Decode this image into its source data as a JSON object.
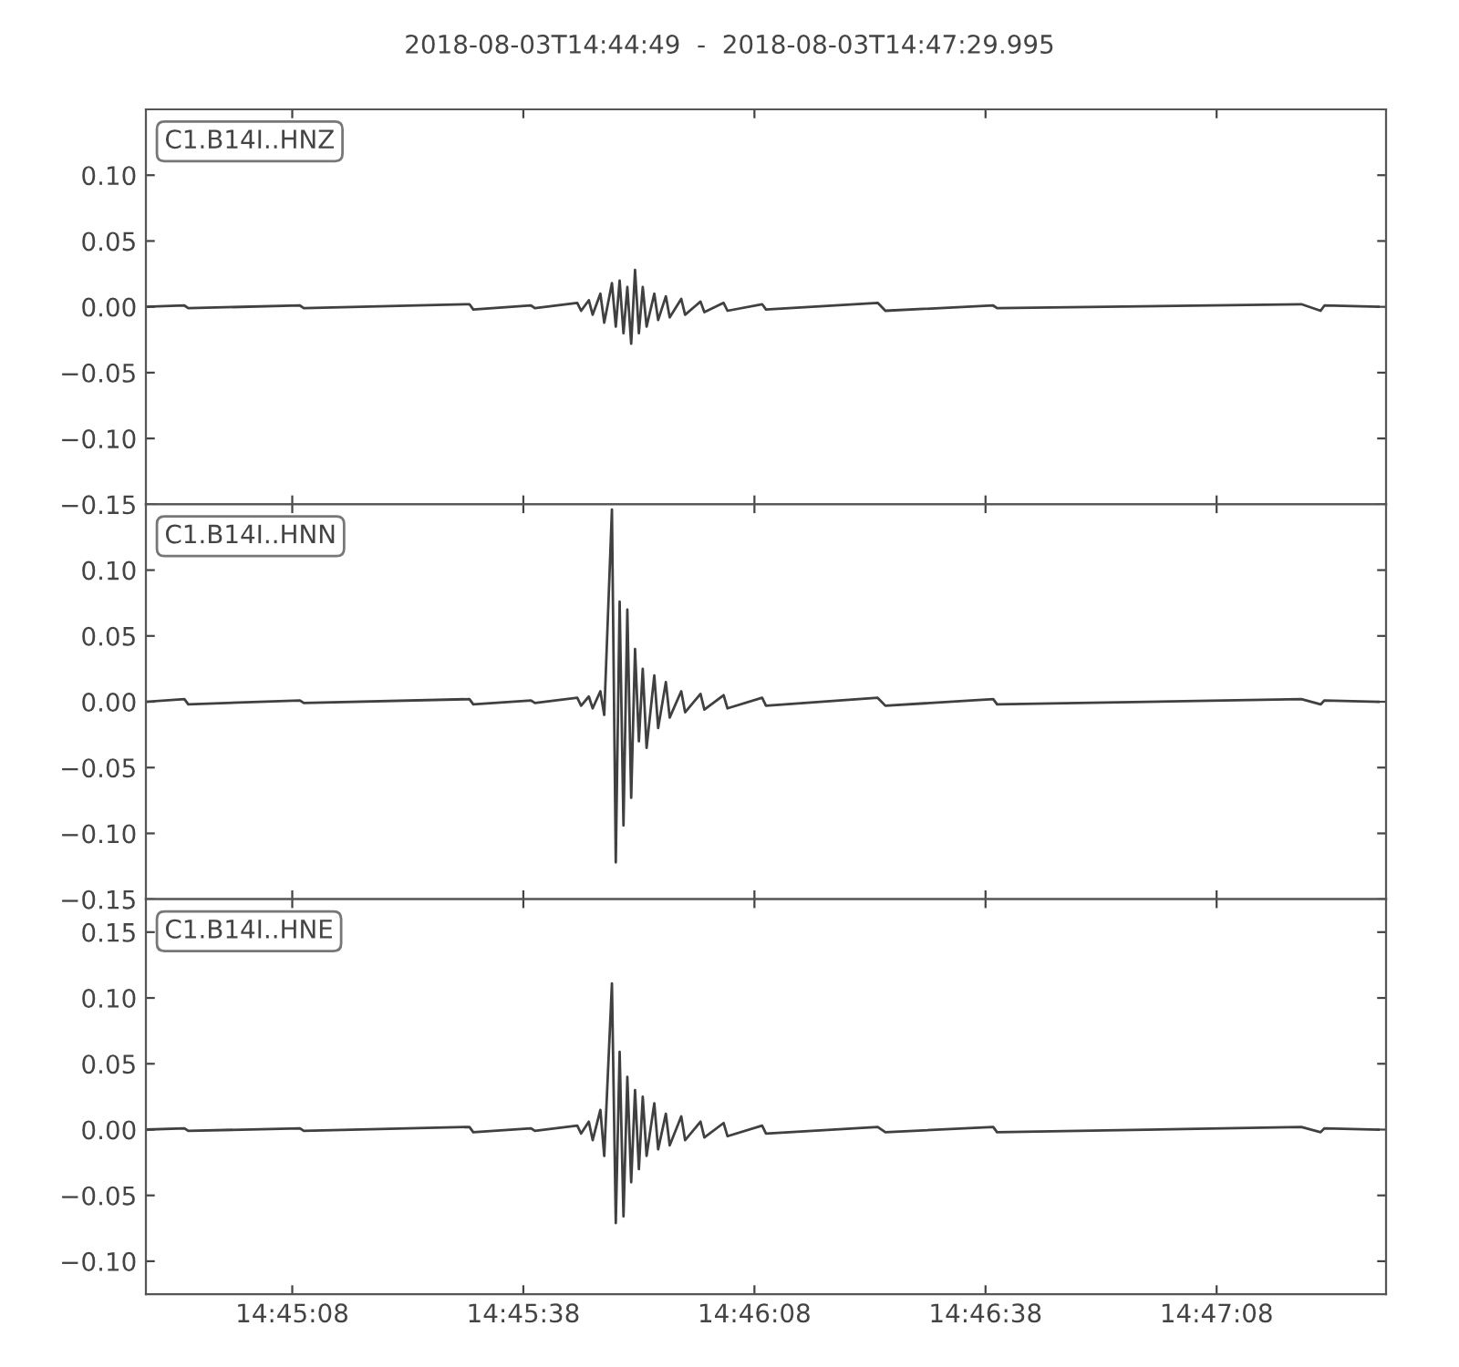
{
  "chart_data": [
    {
      "type": "line",
      "title": "2018-08-03T14:44:49  -  2018-08-03T14:47:29.995",
      "annotations": [
        "C1.B14I..HNZ"
      ],
      "x": [
        "2018-08-03T14:44:49",
        "2018-08-03T14:44:54",
        "2018-08-03T14:44:54.5",
        "2018-08-03T14:45:09",
        "2018-08-03T14:45:09.5",
        "2018-08-03T14:45:31",
        "2018-08-03T14:45:31.5",
        "2018-08-03T14:45:39",
        "2018-08-03T14:45:39.5",
        "2018-08-03T14:45:45",
        "2018-08-03T14:45:45.5",
        "2018-08-03T14:45:46.5",
        "2018-08-03T14:45:47",
        "2018-08-03T14:45:48",
        "2018-08-03T14:45:48.5",
        "2018-08-03T14:45:49.5",
        "2018-08-03T14:45:50",
        "2018-08-03T14:45:50.5",
        "2018-08-03T14:45:51",
        "2018-08-03T14:45:51.5",
        "2018-08-03T14:45:52",
        "2018-08-03T14:45:52.5",
        "2018-08-03T14:45:53",
        "2018-08-03T14:45:53.5",
        "2018-08-03T14:45:54",
        "2018-08-03T14:45:55",
        "2018-08-03T14:45:55.5",
        "2018-08-03T14:45:56.5",
        "2018-08-03T14:45:57",
        "2018-08-03T14:45:58.5",
        "2018-08-03T14:45:59",
        "2018-08-03T14:46:01",
        "2018-08-03T14:46:01.5",
        "2018-08-03T14:46:04",
        "2018-08-03T14:46:04.5",
        "2018-08-03T14:46:09",
        "2018-08-03T14:46:09.5",
        "2018-08-03T14:46:24",
        "2018-08-03T14:46:25",
        "2018-08-03T14:46:39",
        "2018-08-03T14:46:39.5",
        "2018-08-03T14:47:19",
        "2018-08-03T14:47:21.5",
        "2018-08-03T14:47:22",
        "2018-08-03T14:47:29"
      ],
      "series": [
        {
          "color": "#404040",
          "values": [
            0,
            0.001,
            -0.001,
            0.001,
            -0.001,
            0.002,
            -0.002,
            0.001,
            -0.001,
            0.003,
            -0.003,
            0.005,
            -0.006,
            0.01,
            -0.012,
            0.018,
            -0.015,
            0.02,
            -0.02,
            0.015,
            -0.028,
            0.028,
            -0.02,
            0.015,
            -0.015,
            0.01,
            -0.01,
            0.008,
            -0.008,
            0.006,
            -0.006,
            0.004,
            -0.004,
            0.003,
            -0.003,
            0.002,
            -0.002,
            0.003,
            -0.003,
            0.001,
            -0.001,
            0.002,
            -0.003,
            0.001,
            0
          ]
        }
      ],
      "xlim": [
        "2018-08-03T14:44:49",
        "2018-08-03T14:47:29.995"
      ],
      "ylim": [
        -0.15,
        0.15
      ],
      "xticks": [
        {
          "value": "2018-08-03T14:45:08",
          "label": null
        },
        {
          "value": "2018-08-03T14:45:38",
          "label": null
        },
        {
          "value": "2018-08-03T14:46:08",
          "label": null
        },
        {
          "value": "2018-08-03T14:46:38",
          "label": null
        },
        {
          "value": "2018-08-03T14:47:08",
          "label": null
        }
      ],
      "yticks": [
        {
          "value": -0.15,
          "label": "−0.15"
        },
        {
          "value": -0.1,
          "label": "−0.10"
        },
        {
          "value": -0.05,
          "label": "−0.05"
        },
        {
          "value": 0,
          "label": "0.00"
        },
        {
          "value": 0.05,
          "label": "0.05"
        },
        {
          "value": 0.1,
          "label": "0.10"
        }
      ],
      "tick_labels": "y",
      "grid": false,
      "legend": false
    },
    {
      "type": "line",
      "annotations": [
        "C1.B14I..HNN"
      ],
      "x": [
        "2018-08-03T14:44:49",
        "2018-08-03T14:44:54",
        "2018-08-03T14:44:54.5",
        "2018-08-03T14:45:09",
        "2018-08-03T14:45:09.5",
        "2018-08-03T14:45:31",
        "2018-08-03T14:45:31.5",
        "2018-08-03T14:45:39",
        "2018-08-03T14:45:39.5",
        "2018-08-03T14:45:45",
        "2018-08-03T14:45:45.5",
        "2018-08-03T14:45:46.5",
        "2018-08-03T14:45:47",
        "2018-08-03T14:45:48",
        "2018-08-03T14:45:48.5",
        "2018-08-03T14:45:49.5",
        "2018-08-03T14:45:50",
        "2018-08-03T14:45:50.5",
        "2018-08-03T14:45:51",
        "2018-08-03T14:45:51.5",
        "2018-08-03T14:45:52",
        "2018-08-03T14:45:52.5",
        "2018-08-03T14:45:53",
        "2018-08-03T14:45:53.5",
        "2018-08-03T14:45:54",
        "2018-08-03T14:45:55",
        "2018-08-03T14:45:55.5",
        "2018-08-03T14:45:56.5",
        "2018-08-03T14:45:57",
        "2018-08-03T14:45:58.5",
        "2018-08-03T14:45:59",
        "2018-08-03T14:46:01",
        "2018-08-03T14:46:01.5",
        "2018-08-03T14:46:04",
        "2018-08-03T14:46:04.5",
        "2018-08-03T14:46:09",
        "2018-08-03T14:46:09.5",
        "2018-08-03T14:46:24",
        "2018-08-03T14:46:25",
        "2018-08-03T14:46:39",
        "2018-08-03T14:46:39.5",
        "2018-08-03T14:47:19",
        "2018-08-03T14:47:21.5",
        "2018-08-03T14:47:22",
        "2018-08-03T14:47:29"
      ],
      "series": [
        {
          "color": "#404040",
          "values": [
            0,
            0.002,
            -0.002,
            0.001,
            -0.001,
            0.002,
            -0.002,
            0.001,
            -0.001,
            0.003,
            -0.003,
            0.004,
            -0.005,
            0.008,
            -0.01,
            0.146,
            -0.122,
            0.076,
            -0.094,
            0.07,
            -0.073,
            0.04,
            -0.03,
            0.025,
            -0.035,
            0.02,
            -0.02,
            0.015,
            -0.012,
            0.008,
            -0.008,
            0.006,
            -0.006,
            0.005,
            -0.005,
            0.003,
            -0.003,
            0.003,
            -0.003,
            0.002,
            -0.002,
            0.002,
            -0.002,
            0.001,
            0
          ]
        }
      ],
      "xlim": [
        "2018-08-03T14:44:49",
        "2018-08-03T14:47:29.995"
      ],
      "ylim": [
        -0.15,
        0.15
      ],
      "xticks": [
        {
          "value": "2018-08-03T14:45:08",
          "label": null
        },
        {
          "value": "2018-08-03T14:45:38",
          "label": null
        },
        {
          "value": "2018-08-03T14:46:08",
          "label": null
        },
        {
          "value": "2018-08-03T14:46:38",
          "label": null
        },
        {
          "value": "2018-08-03T14:47:08",
          "label": null
        }
      ],
      "yticks": [
        {
          "value": -0.15,
          "label": "−0.15"
        },
        {
          "value": -0.1,
          "label": "−0.10"
        },
        {
          "value": -0.05,
          "label": "−0.05"
        },
        {
          "value": 0,
          "label": "0.00"
        },
        {
          "value": 0.05,
          "label": "0.05"
        },
        {
          "value": 0.1,
          "label": "0.10"
        }
      ],
      "tick_labels": "y",
      "grid": false,
      "legend": false
    },
    {
      "type": "line",
      "annotations": [
        "C1.B14I..HNE"
      ],
      "x": [
        "2018-08-03T14:44:49",
        "2018-08-03T14:44:54",
        "2018-08-03T14:44:54.5",
        "2018-08-03T14:45:09",
        "2018-08-03T14:45:09.5",
        "2018-08-03T14:45:31",
        "2018-08-03T14:45:31.5",
        "2018-08-03T14:45:39",
        "2018-08-03T14:45:39.5",
        "2018-08-03T14:45:45",
        "2018-08-03T14:45:45.5",
        "2018-08-03T14:45:46.5",
        "2018-08-03T14:45:47",
        "2018-08-03T14:45:48",
        "2018-08-03T14:45:48.5",
        "2018-08-03T14:45:49.5",
        "2018-08-03T14:45:50",
        "2018-08-03T14:45:50.5",
        "2018-08-03T14:45:51",
        "2018-08-03T14:45:51.5",
        "2018-08-03T14:45:52",
        "2018-08-03T14:45:52.5",
        "2018-08-03T14:45:53",
        "2018-08-03T14:45:53.5",
        "2018-08-03T14:45:54",
        "2018-08-03T14:45:55",
        "2018-08-03T14:45:55.5",
        "2018-08-03T14:45:56.5",
        "2018-08-03T14:45:57",
        "2018-08-03T14:45:58.5",
        "2018-08-03T14:45:59",
        "2018-08-03T14:46:01",
        "2018-08-03T14:46:01.5",
        "2018-08-03T14:46:04",
        "2018-08-03T14:46:04.5",
        "2018-08-03T14:46:09",
        "2018-08-03T14:46:09.5",
        "2018-08-03T14:46:24",
        "2018-08-03T14:46:25",
        "2018-08-03T14:46:39",
        "2018-08-03T14:46:39.5",
        "2018-08-03T14:47:19",
        "2018-08-03T14:47:21.5",
        "2018-08-03T14:47:22",
        "2018-08-03T14:47:29"
      ],
      "series": [
        {
          "color": "#404040",
          "values": [
            0,
            0.001,
            -0.001,
            0.001,
            -0.001,
            0.002,
            -0.002,
            0.001,
            -0.001,
            0.003,
            -0.003,
            0.006,
            -0.008,
            0.015,
            -0.02,
            0.111,
            -0.071,
            0.059,
            -0.066,
            0.04,
            -0.04,
            0.03,
            -0.03,
            0.025,
            -0.02,
            0.02,
            -0.015,
            0.012,
            -0.012,
            0.01,
            -0.008,
            0.006,
            -0.006,
            0.005,
            -0.005,
            0.003,
            -0.003,
            0.002,
            -0.002,
            0.002,
            -0.002,
            0.002,
            -0.002,
            0.001,
            0
          ]
        }
      ],
      "xlim": [
        "2018-08-03T14:44:49",
        "2018-08-03T14:47:29.995"
      ],
      "ylim": [
        -0.125,
        0.175
      ],
      "xticks": [
        {
          "value": "2018-08-03T14:45:08",
          "label": "14:45:08"
        },
        {
          "value": "2018-08-03T14:45:38",
          "label": "14:45:38"
        },
        {
          "value": "2018-08-03T14:46:08",
          "label": "14:46:08"
        },
        {
          "value": "2018-08-03T14:46:38",
          "label": "14:46:38"
        },
        {
          "value": "2018-08-03T14:47:08",
          "label": "14:47:08"
        }
      ],
      "yticks": [
        {
          "value": -0.1,
          "label": "−0.10"
        },
        {
          "value": -0.05,
          "label": "−0.05"
        },
        {
          "value": 0,
          "label": "0.00"
        },
        {
          "value": 0.05,
          "label": "0.05"
        },
        {
          "value": 0.1,
          "label": "0.10"
        },
        {
          "value": 0.15,
          "label": "0.15"
        }
      ],
      "grid": false,
      "legend": false
    }
  ]
}
